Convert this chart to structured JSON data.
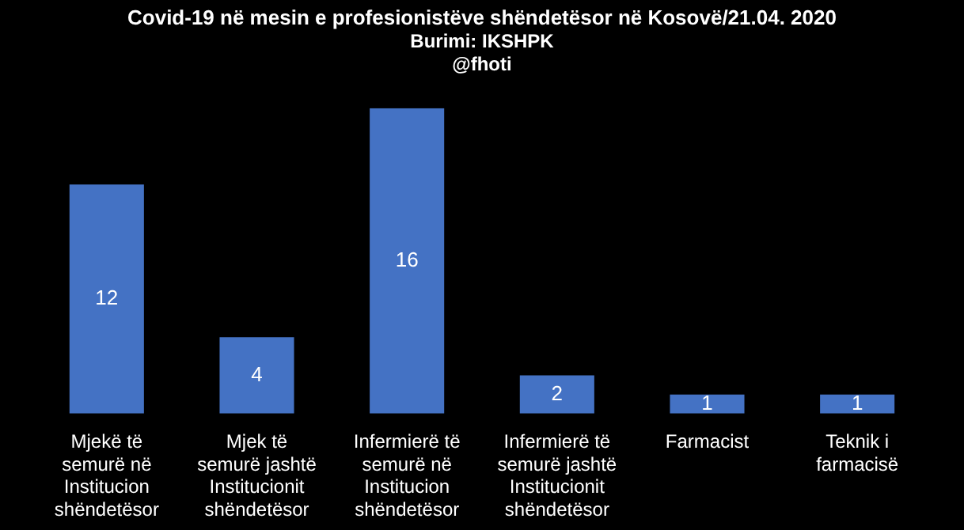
{
  "chart_data": {
    "type": "bar",
    "title": "Covid-19 në mesin e profesionistëve shëndetësor në Kosovë/21.04. 2020",
    "subtitle": "Burimi: IKSHPK",
    "annotations": [
      "@fhoti"
    ],
    "categories": [
      "Mjekë të semurë në Institucion shëndetësor",
      "Mjek të semurë jashtë Institucionit shëndetësor",
      "Infermierë të semurë në Institucion shëndetësor",
      "Infermierë të semurë jashtë Institucionit shëndetësor",
      "Farmacist",
      "Teknik i farmacisë"
    ],
    "values": [
      12,
      4,
      16,
      2,
      1,
      1
    ],
    "color": "#4472c4",
    "data_labels": true
  }
}
